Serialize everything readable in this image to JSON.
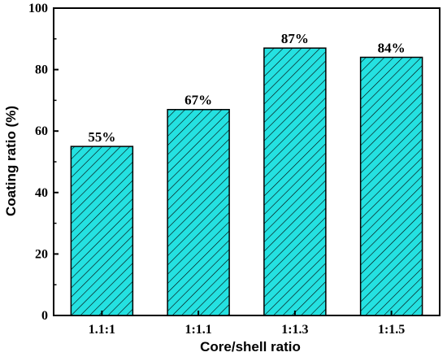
{
  "chart_data": {
    "type": "bar",
    "xlabel": "Core/shell ratio",
    "ylabel": "Coating ratio (%)",
    "categories": [
      "1.1:1",
      "1:1.1",
      "1:1.3",
      "1:1.5"
    ],
    "values": [
      55,
      67,
      87,
      84
    ],
    "data_labels": [
      "55%",
      "67%",
      "87%",
      "84%"
    ],
    "ylim": [
      0,
      100
    ],
    "yticks": [
      0,
      20,
      40,
      60,
      80,
      100
    ],
    "ytick_labels": [
      "0",
      "20",
      "40",
      "60",
      "80",
      "100"
    ],
    "grid": false,
    "bar_fill": "#24e1e1",
    "bar_hatch": "diagonal-lines",
    "bar_edge": "#000000"
  }
}
